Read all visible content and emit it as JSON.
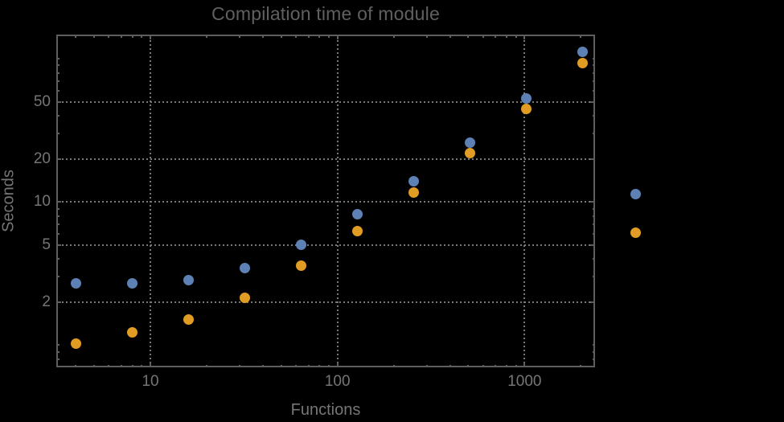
{
  "colors": {
    "background": "#000000",
    "frame": "#5e5e5e",
    "gridline": "#787878",
    "title_text": "#606060",
    "tick_label_text": "#757575",
    "axis_label_text": "#757575",
    "series_blue": "#5e81b5",
    "series_orange": "#e19c24"
  },
  "chart_data": {
    "type": "scatter",
    "title": "Compilation time of module",
    "xlabel": "Functions",
    "ylabel": "Seconds",
    "xscale": "log",
    "yscale": "log",
    "xlim": [
      3.14,
      2380
    ],
    "ylim": [
      0.7,
      148
    ],
    "grid": "dotted gridlines at labeled major ticks only",
    "frame": "full frame with inward ticks mirrored on all four edges",
    "x": [
      4,
      8,
      16,
      32,
      64,
      128,
      256,
      512,
      1024,
      2048
    ],
    "series": [
      {
        "name": "blue",
        "color": "#5e81b5",
        "values": [
          2.7,
          2.7,
          2.85,
          3.45,
          5.0,
          8.2,
          14.0,
          26.0,
          53.0,
          112
        ]
      },
      {
        "name": "orange",
        "color": "#e19c24",
        "values": [
          1.03,
          1.23,
          1.52,
          2.15,
          3.6,
          6.25,
          11.6,
          22.0,
          45.0,
          93
        ]
      }
    ],
    "x_ticks": {
      "major": [
        10,
        100,
        1000
      ],
      "labels": [
        "10",
        "100",
        "1000"
      ],
      "minor": [
        4,
        5,
        6,
        7,
        8,
        9,
        20,
        30,
        40,
        50,
        60,
        70,
        80,
        90,
        200,
        300,
        400,
        500,
        600,
        700,
        800,
        900,
        2000
      ]
    },
    "y_ticks": {
      "major": [
        2,
        5,
        10,
        20,
        50
      ],
      "labels": [
        "2",
        "5",
        "10",
        "20",
        "50"
      ],
      "minor": [
        0.8,
        0.9,
        1,
        3,
        4,
        6,
        7,
        8,
        9,
        30,
        40,
        60,
        70,
        80,
        90,
        100
      ]
    },
    "legend": {
      "position": "outside-right",
      "entries": [
        {
          "series": "blue",
          "marker_color": "#5e81b5",
          "label": ""
        },
        {
          "series": "orange",
          "marker_color": "#e19c24",
          "label": ""
        }
      ]
    }
  }
}
